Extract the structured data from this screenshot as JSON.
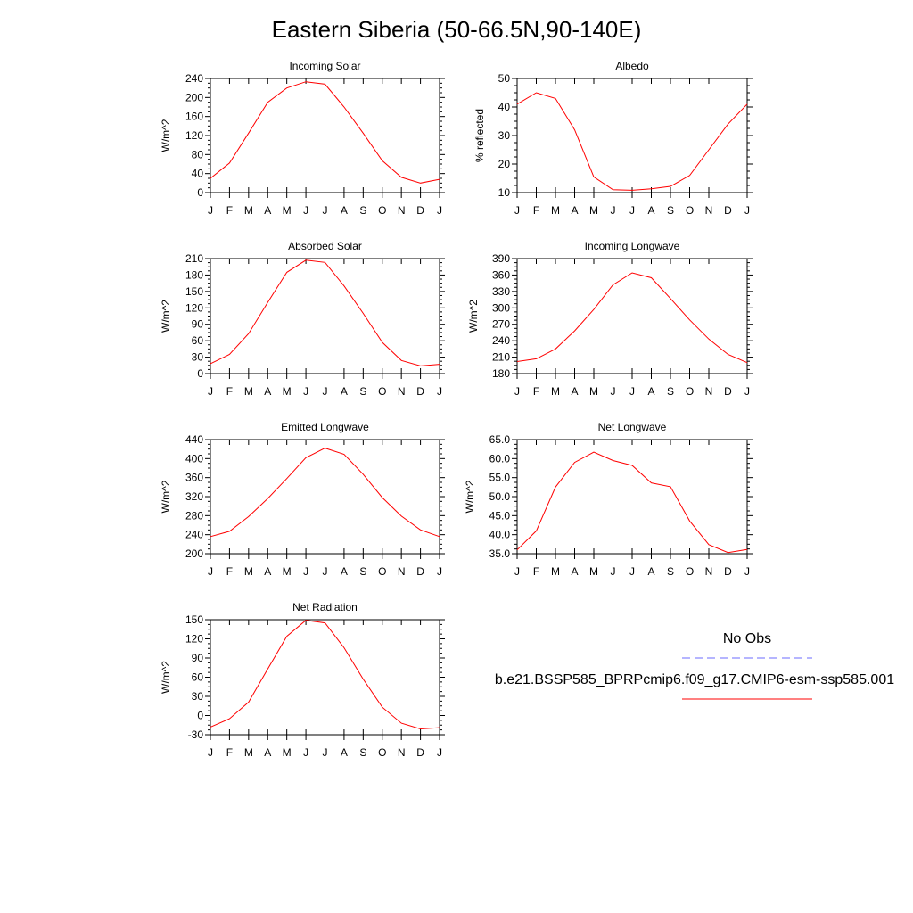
{
  "figure": {
    "title": "Eastern Siberia (50-66.5N,90-140E)",
    "line_color": "#ff0000",
    "obs_color": "#6b6bff"
  },
  "legend": {
    "obs_label": "No Obs",
    "model_label": "b.e21.BSSP585_BPRPcmip6.f09_g17.CMIP6-esm-ssp585.001"
  },
  "chart_data": [
    {
      "type": "line",
      "title": "Incoming Solar",
      "ylabel": "W/m^2",
      "categories": [
        "J",
        "F",
        "M",
        "A",
        "M",
        "J",
        "J",
        "A",
        "S",
        "O",
        "N",
        "D",
        "J"
      ],
      "ylim": [
        0,
        240
      ],
      "yticks": [
        "0",
        "40",
        "80",
        "120",
        "160",
        "200",
        "240"
      ],
      "values": [
        30,
        62,
        125,
        190,
        220,
        233,
        228,
        180,
        125,
        67,
        32,
        20,
        28
      ]
    },
    {
      "type": "line",
      "title": "Albedo",
      "ylabel": "% reflected",
      "categories": [
        "J",
        "F",
        "M",
        "A",
        "M",
        "J",
        "J",
        "A",
        "S",
        "O",
        "N",
        "D",
        "J"
      ],
      "ylim": [
        10,
        50
      ],
      "yticks": [
        "10",
        "20",
        "30",
        "40",
        "50"
      ],
      "values": [
        41,
        45,
        43,
        32,
        15.5,
        11,
        10.8,
        11.3,
        12.2,
        16,
        25,
        34,
        41
      ]
    },
    {
      "type": "line",
      "title": "Absorbed Solar",
      "ylabel": "W/m^2",
      "categories": [
        "J",
        "F",
        "M",
        "A",
        "M",
        "J",
        "J",
        "A",
        "S",
        "O",
        "N",
        "D",
        "J"
      ],
      "ylim": [
        0,
        210
      ],
      "yticks": [
        "0",
        "30",
        "60",
        "90",
        "120",
        "150",
        "180",
        "210"
      ],
      "values": [
        18,
        35,
        73,
        130,
        185,
        207,
        203,
        160,
        110,
        57,
        24,
        14,
        17
      ]
    },
    {
      "type": "line",
      "title": "Incoming Longwave",
      "ylabel": "W/m^2",
      "categories": [
        "J",
        "F",
        "M",
        "A",
        "M",
        "J",
        "J",
        "A",
        "S",
        "O",
        "N",
        "D",
        "J"
      ],
      "ylim": [
        180,
        390
      ],
      "yticks": [
        "180",
        "210",
        "240",
        "270",
        "300",
        "330",
        "360",
        "390"
      ],
      "values": [
        202,
        207,
        225,
        258,
        297,
        342,
        364,
        355,
        317,
        278,
        243,
        215,
        200
      ]
    },
    {
      "type": "line",
      "title": "Emitted Longwave",
      "ylabel": "W/m^2",
      "categories": [
        "J",
        "F",
        "M",
        "A",
        "M",
        "J",
        "J",
        "A",
        "S",
        "O",
        "N",
        "D",
        "J"
      ],
      "ylim": [
        200,
        440
      ],
      "yticks": [
        "200",
        "240",
        "280",
        "320",
        "360",
        "400",
        "440"
      ],
      "values": [
        236,
        247,
        278,
        316,
        358,
        402,
        422,
        409,
        367,
        318,
        279,
        250,
        236
      ]
    },
    {
      "type": "line",
      "title": "Net Longwave",
      "ylabel": "W/m^2",
      "categories": [
        "J",
        "F",
        "M",
        "A",
        "M",
        "J",
        "J",
        "A",
        "S",
        "O",
        "N",
        "D",
        "J"
      ],
      "ylim": [
        35,
        65
      ],
      "yticks": [
        "35.0",
        "40.0",
        "45.0",
        "50.0",
        "55.0",
        "60.0",
        "65.0"
      ],
      "values": [
        36.0,
        41.0,
        52.5,
        59.0,
        61.7,
        59.5,
        58.2,
        53.6,
        52.6,
        43.6,
        37.4,
        35.3,
        36.1
      ]
    },
    {
      "type": "line",
      "title": "Net Radiation",
      "ylabel": "W/m^2",
      "categories": [
        "J",
        "F",
        "M",
        "A",
        "M",
        "J",
        "J",
        "A",
        "S",
        "O",
        "N",
        "D",
        "J"
      ],
      "ylim": [
        -30,
        150
      ],
      "yticks": [
        "-30",
        "0",
        "30",
        "60",
        "90",
        "120",
        "150"
      ],
      "values": [
        -18,
        -5,
        21,
        73,
        124,
        149,
        145,
        106,
        57,
        13,
        -12,
        -21,
        -19
      ]
    }
  ]
}
